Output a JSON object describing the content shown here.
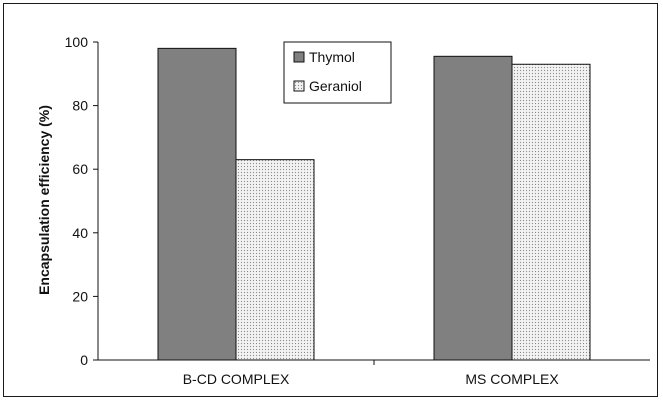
{
  "chart_data": {
    "type": "bar",
    "title": "",
    "xlabel": "",
    "ylabel": "Encapsulation efficiency (%)",
    "categories": [
      "B-CD COMPLEX",
      "MS COMPLEX"
    ],
    "series": [
      {
        "name": "Thymol",
        "values": [
          98,
          95.5
        ],
        "color": "#808080",
        "pattern": "solid"
      },
      {
        "name": "Geraniol",
        "values": [
          63,
          93
        ],
        "color": "#e0e0e0",
        "pattern": "dotted"
      }
    ],
    "ylim": [
      0,
      100
    ],
    "yticks": [
      0,
      20,
      40,
      60,
      80,
      100
    ],
    "grid": false,
    "legend_position": "top-center"
  }
}
